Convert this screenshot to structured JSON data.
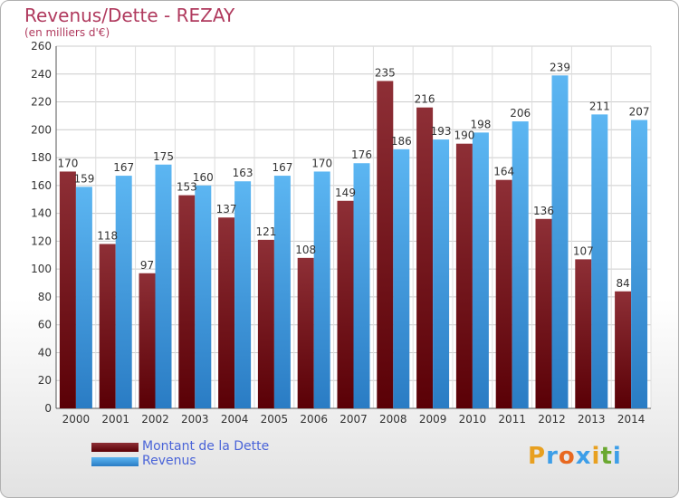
{
  "title": "Revenus/Dette - REZAY",
  "subtitle": "(en milliers d'€)",
  "colors": {
    "dette": "#7a1a22",
    "revenus": "#3d9ee8",
    "axis_text": "#333333",
    "title": "#b03a5e"
  },
  "legend": [
    {
      "label": "Montant de la Dette",
      "color": "#7a1a22"
    },
    {
      "label": "Revenus",
      "color": "#3d9ee8"
    }
  ],
  "logo": {
    "text": "Proxiti",
    "letters": [
      "P",
      "r",
      "o",
      "x",
      "i",
      "t",
      "i"
    ]
  },
  "chart_data": {
    "type": "bar",
    "categories": [
      "2000",
      "2001",
      "2002",
      "2003",
      "2004",
      "2005",
      "2006",
      "2007",
      "2008",
      "2009",
      "2010",
      "2011",
      "2012",
      "2013",
      "2014"
    ],
    "series": [
      {
        "name": "Montant de la Dette",
        "values": [
          170,
          118,
          97,
          153,
          137,
          121,
          108,
          149,
          235,
          216,
          190,
          164,
          136,
          107,
          84
        ]
      },
      {
        "name": "Revenus",
        "values": [
          159,
          167,
          175,
          160,
          163,
          167,
          170,
          176,
          186,
          193,
          198,
          206,
          239,
          211,
          207
        ]
      }
    ],
    "yticks": [
      0,
      20,
      40,
      60,
      80,
      100,
      120,
      140,
      160,
      180,
      200,
      220,
      240,
      260
    ],
    "ylim": [
      0,
      260
    ],
    "grid": true,
    "legend_position": "bottom-left"
  }
}
